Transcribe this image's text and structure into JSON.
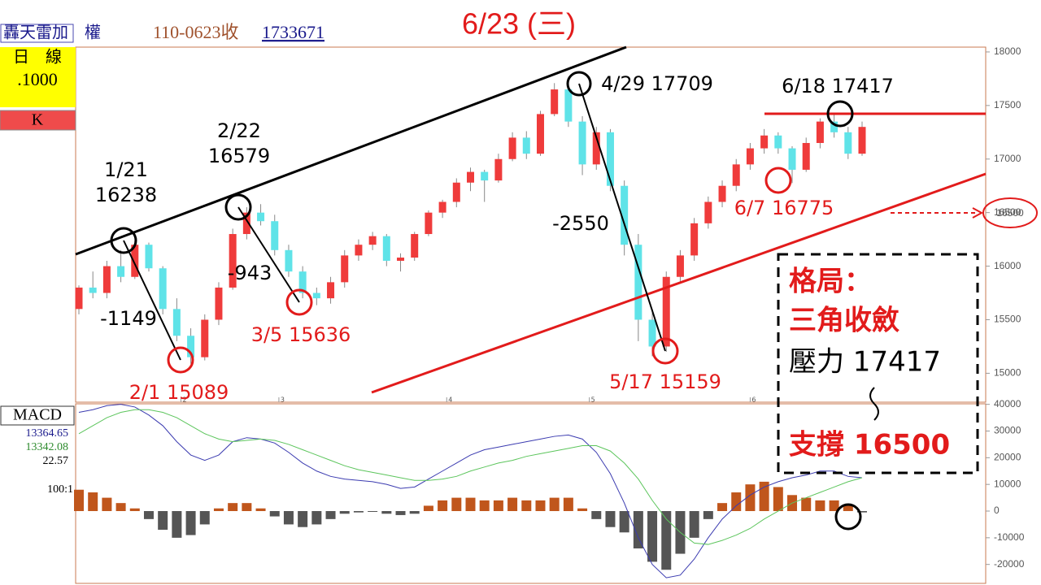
{
  "header": {
    "name": "轟天雷加　權",
    "date": "110-0623收",
    "index": "1733671",
    "period": "日　線",
    "scale": ".1000",
    "kind": "K"
  },
  "chart_data": {
    "type": "candlestick",
    "title": "6/23 (三)",
    "up_color": "#ef3b3b",
    "down_color": "#5fe3e8",
    "ohlc": [
      [
        15600,
        15820,
        15550,
        15800
      ],
      [
        15800,
        15950,
        15700,
        15750
      ],
      [
        15750,
        16050,
        15700,
        16000
      ],
      [
        16000,
        16150,
        15850,
        15900
      ],
      [
        15900,
        16238,
        15880,
        16200
      ],
      [
        16200,
        16220,
        15950,
        15980
      ],
      [
        15980,
        16000,
        15550,
        15600
      ],
      [
        15600,
        15700,
        15300,
        15350
      ],
      [
        15350,
        15420,
        15089,
        15150
      ],
      [
        15150,
        15550,
        15120,
        15500
      ],
      [
        15500,
        15850,
        15450,
        15800
      ],
      [
        15800,
        16350,
        15780,
        16300
      ],
      [
        16300,
        16550,
        16250,
        16500
      ],
      [
        16500,
        16579,
        16380,
        16420
      ],
      [
        16420,
        16480,
        16100,
        16150
      ],
      [
        16150,
        16200,
        15900,
        15950
      ],
      [
        15950,
        16000,
        15700,
        15750
      ],
      [
        15750,
        15800,
        15636,
        15700
      ],
      [
        15700,
        15900,
        15650,
        15850
      ],
      [
        15850,
        16150,
        15800,
        16100
      ],
      [
        16100,
        16250,
        16050,
        16200
      ],
      [
        16200,
        16320,
        16150,
        16280
      ],
      [
        16280,
        16300,
        16000,
        16050
      ],
      [
        16050,
        16120,
        15950,
        16080
      ],
      [
        16080,
        16320,
        16050,
        16300
      ],
      [
        16300,
        16520,
        16280,
        16500
      ],
      [
        16500,
        16620,
        16450,
        16600
      ],
      [
        16600,
        16820,
        16550,
        16780
      ],
      [
        16780,
        16920,
        16700,
        16880
      ],
      [
        16880,
        16900,
        16600,
        16800
      ],
      [
        16800,
        17050,
        16780,
        17000
      ],
      [
        17000,
        17250,
        16980,
        17200
      ],
      [
        17200,
        17260,
        17000,
        17050
      ],
      [
        17050,
        17450,
        17030,
        17420
      ],
      [
        17420,
        17709,
        17400,
        17650
      ],
      [
        17650,
        17700,
        17300,
        17350
      ],
      [
        17350,
        17400,
        16850,
        16950
      ],
      [
        16950,
        17300,
        16900,
        17250
      ],
      [
        17250,
        17280,
        16700,
        16750
      ],
      [
        16750,
        16800,
        16100,
        16200
      ],
      [
        16200,
        16300,
        15300,
        15500
      ],
      [
        15500,
        15600,
        15159,
        15250
      ],
      [
        15250,
        15950,
        15200,
        15900
      ],
      [
        15900,
        16150,
        15850,
        16100
      ],
      [
        16100,
        16450,
        16050,
        16400
      ],
      [
        16400,
        16650,
        16350,
        16600
      ],
      [
        16600,
        16800,
        16550,
        16750
      ],
      [
        16750,
        17000,
        16700,
        16950
      ],
      [
        16950,
        17150,
        16900,
        17100
      ],
      [
        17100,
        17280,
        17050,
        17220
      ],
      [
        17220,
        17250,
        17050,
        17100
      ],
      [
        17100,
        17120,
        16775,
        16900
      ],
      [
        16900,
        17200,
        16880,
        17150
      ],
      [
        17150,
        17380,
        17100,
        17350
      ],
      [
        17350,
        17417,
        17200,
        17250
      ],
      [
        17250,
        17300,
        17000,
        17050
      ],
      [
        17050,
        17350,
        17030,
        17300
      ]
    ],
    "months": [
      "2",
      "3",
      "4",
      "5",
      "6"
    ],
    "ylim": [
      14730,
      18045
    ],
    "yticks": [
      15000,
      15500,
      16000,
      16500,
      17000,
      17500,
      18000
    ],
    "annotations": [
      {
        "text": "1/21",
        "color": "#000"
      },
      {
        "text": "16238",
        "color": "#000"
      },
      {
        "text": "2/22",
        "color": "#000"
      },
      {
        "text": "16579",
        "color": "#000"
      },
      {
        "text": "4/29 17709",
        "color": "#000"
      },
      {
        "text": "6/18 17417",
        "color": "#000"
      },
      {
        "text": "-1149",
        "color": "#000"
      },
      {
        "text": "-943",
        "color": "#000"
      },
      {
        "text": "-2550",
        "color": "#000"
      },
      {
        "text": "2/1 15089",
        "color": "#e21b1b"
      },
      {
        "text": "3/5 15636",
        "color": "#e21b1b"
      },
      {
        "text": "5/17 15159",
        "color": "#e21b1b"
      },
      {
        "text": "6/7 16775",
        "color": "#e21b1b"
      }
    ],
    "support_label": "16500",
    "summary": [
      "格局：",
      "三角收斂",
      "壓力 17417",
      "支撐 16500"
    ],
    "macd": {
      "label": "MACD",
      "readouts": [
        13364.65,
        13342.08,
        22.57
      ],
      "ratio": "100:1",
      "ylim": [
        -27100,
        40200
      ],
      "yticks": [
        -20000,
        -10000,
        0,
        10000,
        20000,
        30000,
        40000
      ],
      "histogram": {
        "pos_color": "#c0561c",
        "neg_color": "#555555",
        "values": [
          8000,
          7000,
          5000,
          3000,
          1000,
          -3000,
          -7000,
          -10000,
          -9000,
          -5000,
          1000,
          3000,
          3000,
          1000,
          -2000,
          -5000,
          -6000,
          -5000,
          -3000,
          -1000,
          -500,
          -300,
          -1000,
          -1500,
          -1000,
          2000,
          4000,
          5000,
          5000,
          4000,
          4000,
          5000,
          4000,
          4000,
          5000,
          5000,
          1000,
          -3000,
          -6000,
          -8000,
          -14000,
          -19000,
          -22000,
          -16000,
          -10000,
          -3000,
          3000,
          7000,
          10000,
          11000,
          9000,
          6000,
          5000,
          4000,
          4000,
          2000,
          -500
        ]
      },
      "series": [
        {
          "color": "#3b3bb0",
          "values": [
            37000,
            38000,
            39500,
            40000,
            39000,
            36000,
            32000,
            26000,
            21000,
            19000,
            21000,
            26000,
            27500,
            27000,
            25500,
            22000,
            18000,
            15000,
            13000,
            12000,
            11500,
            11000,
            10000,
            8500,
            9000,
            12000,
            15000,
            18000,
            21000,
            23000,
            24000,
            25000,
            26000,
            27000,
            28000,
            28500,
            27000,
            22000,
            14000,
            3000,
            -10000,
            -20000,
            -25000,
            -24000,
            -18000,
            -10000,
            -3000,
            2000,
            6000,
            9000,
            11000,
            12500,
            13500,
            15000,
            15000,
            13000,
            12500
          ]
        },
        {
          "color": "#5cc55c",
          "values": [
            29000,
            32000,
            35000,
            37000,
            38000,
            38000,
            37000,
            35000,
            32000,
            29000,
            27000,
            26000,
            26500,
            27000,
            26500,
            25000,
            23000,
            21000,
            19000,
            17000,
            15500,
            14500,
            13500,
            12500,
            11500,
            11500,
            12000,
            13000,
            15000,
            16500,
            18000,
            19000,
            20500,
            21500,
            22500,
            23500,
            24500,
            24500,
            22500,
            18000,
            12000,
            4000,
            -3000,
            -8000,
            -12000,
            -12500,
            -11000,
            -9000,
            -6500,
            -3000,
            0,
            3000,
            5000,
            7000,
            9000,
            11000,
            12500
          ]
        }
      ]
    }
  }
}
